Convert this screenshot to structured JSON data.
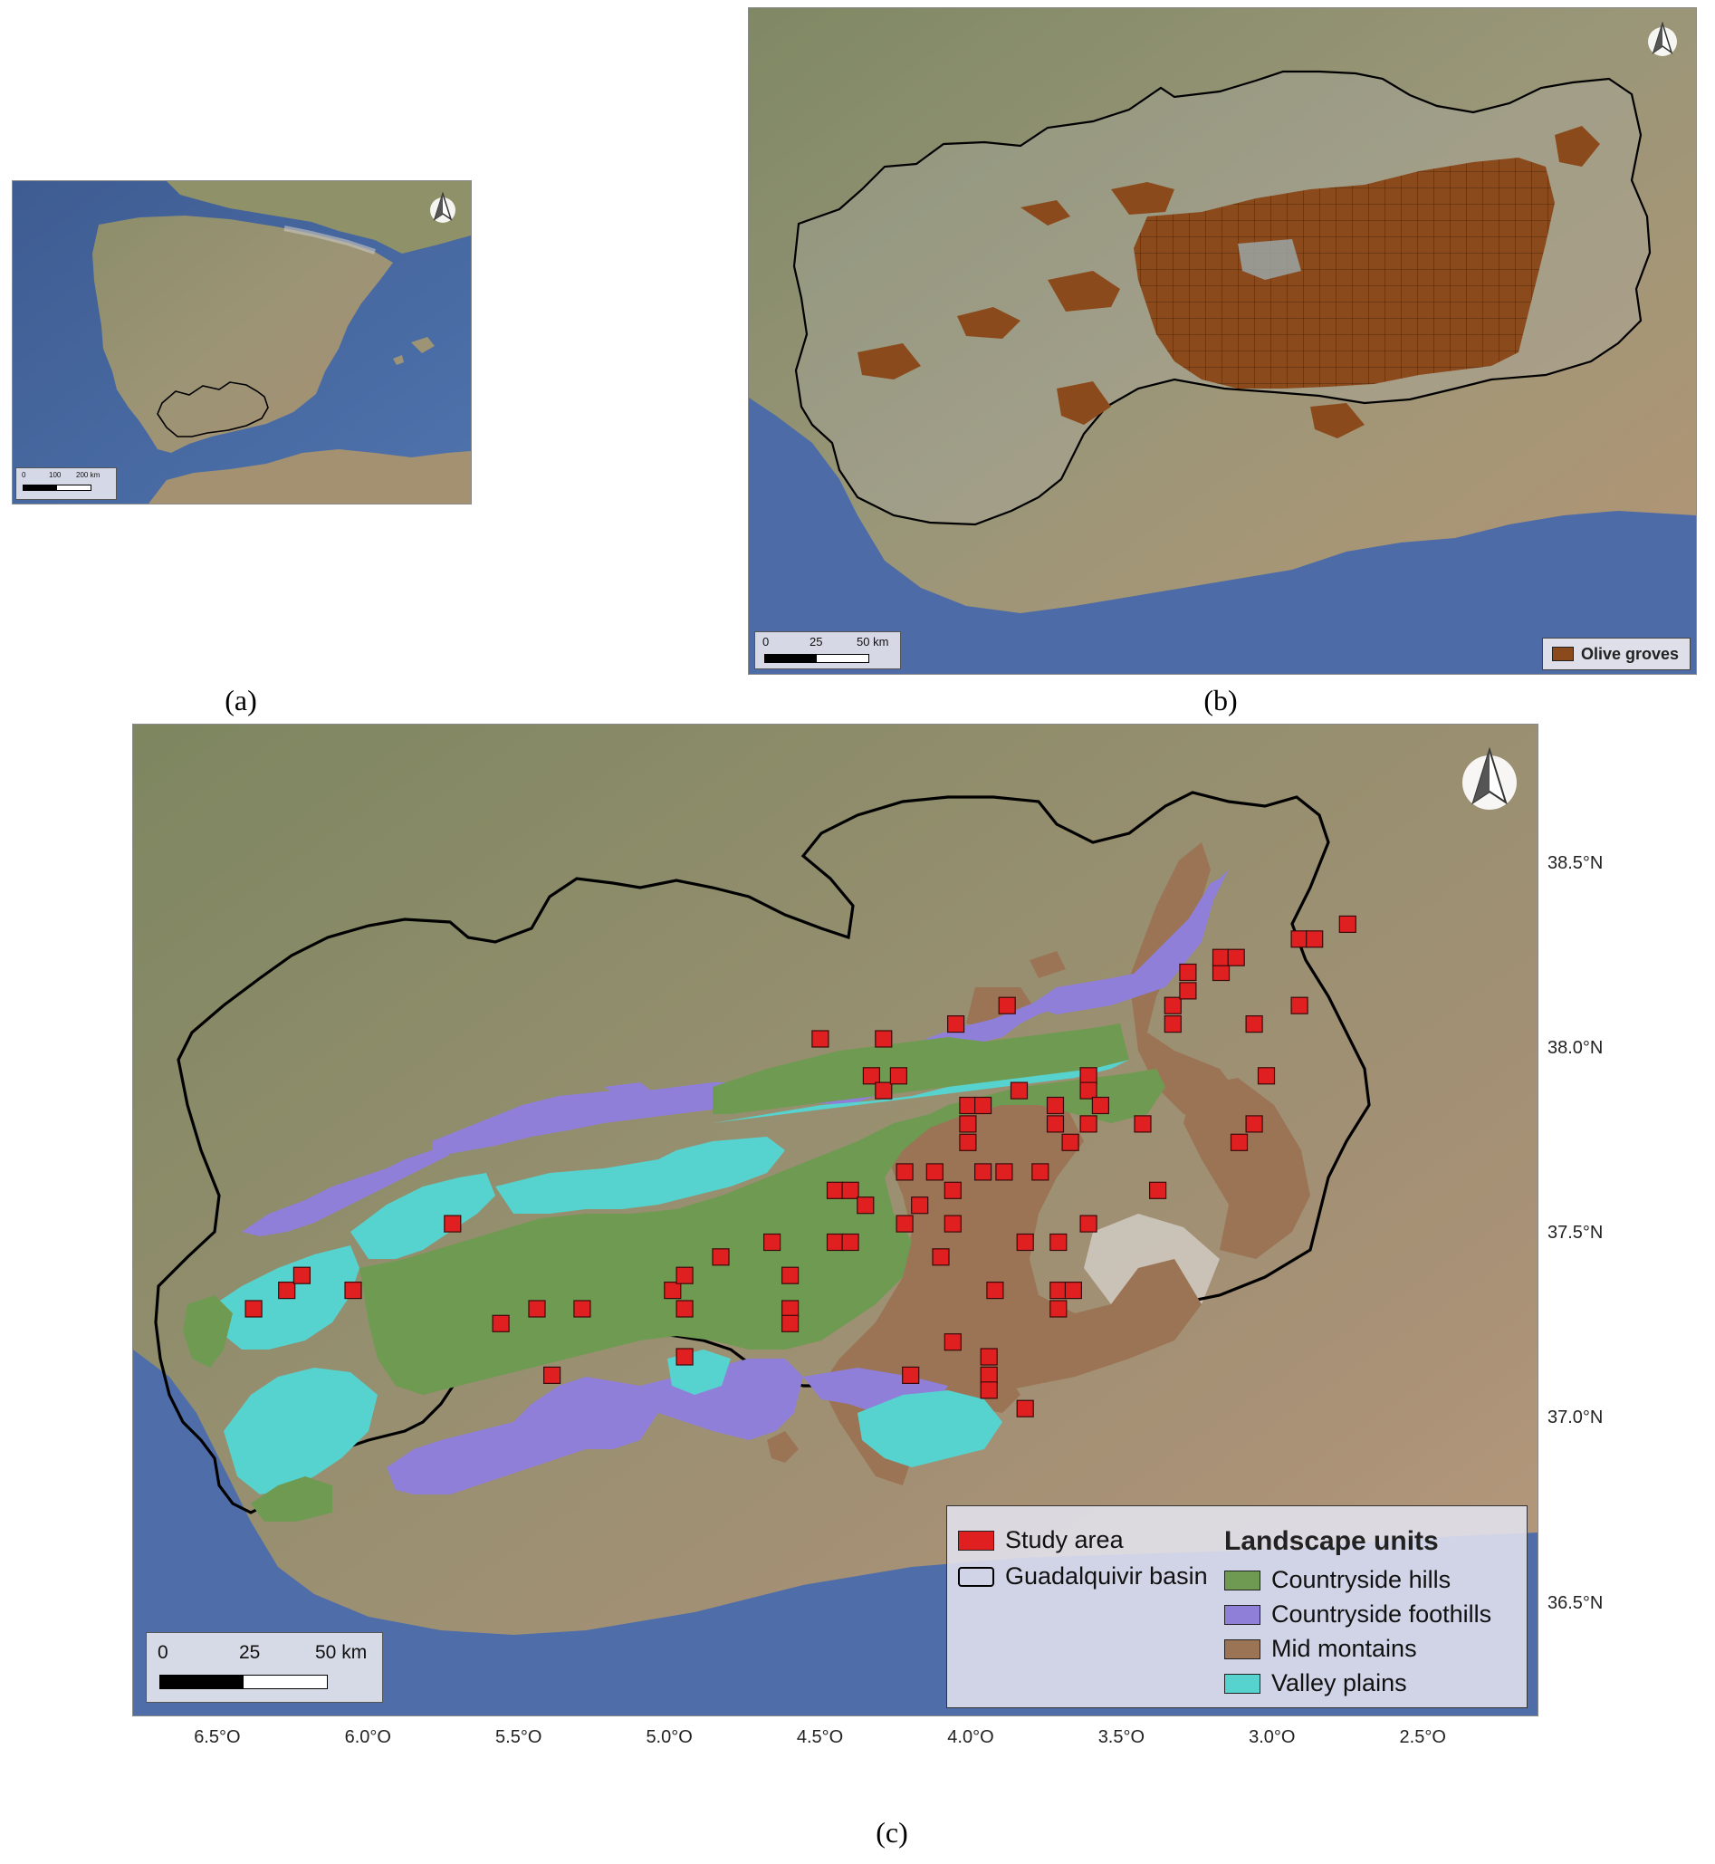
{
  "panels": {
    "a": {
      "caption": "(a)",
      "scale": {
        "ticks": [
          "0",
          "100",
          "200 km"
        ]
      }
    },
    "b": {
      "caption": "(b)",
      "scale": {
        "ticks": [
          "0",
          "25",
          "50 km"
        ]
      },
      "legend_label": "Olive groves"
    },
    "c": {
      "caption": "(c)",
      "scale": {
        "ticks": [
          "0",
          "25",
          "50 km"
        ]
      },
      "legend": {
        "study_area": "Study area",
        "basin": "Guadalquivir basin",
        "title": "Landscape units",
        "units": [
          {
            "label": "Countryside hills",
            "color": "#6f9a52"
          },
          {
            "label": "Countryside foothills",
            "color": "#8f7fd8"
          },
          {
            "label": "Mid montains",
            "color": "#9b7455"
          },
          {
            "label": "Valley plains",
            "color": "#57d3cf"
          }
        ]
      },
      "lon_labels": [
        "6.5°O",
        "6.0°O",
        "5.5°O",
        "5.0°O",
        "4.5°O",
        "4.0°O",
        "3.5°O",
        "3.0°O",
        "2.5°O"
      ],
      "lat_labels": [
        "38.5°N",
        "38.0°N",
        "37.5°N",
        "37.0°N",
        "36.5°N"
      ]
    }
  },
  "colors": {
    "olive_groves": "#8b4a1c",
    "study_area": "#e02020",
    "basin_outline": "#000000",
    "land": "#8a8d6a",
    "sea": "#4f6fa8"
  },
  "study_area_points": [
    [
      -6.38,
      37.3
    ],
    [
      -6.27,
      37.35
    ],
    [
      -6.22,
      37.39
    ],
    [
      -6.05,
      37.35
    ],
    [
      -5.72,
      37.53
    ],
    [
      -5.56,
      37.26
    ],
    [
      -5.44,
      37.3
    ],
    [
      -5.29,
      37.3
    ],
    [
      -5.39,
      37.12
    ],
    [
      -4.99,
      37.35
    ],
    [
      -4.95,
      37.39
    ],
    [
      -4.95,
      37.3
    ],
    [
      -4.95,
      37.17
    ],
    [
      -4.83,
      37.44
    ],
    [
      -4.66,
      37.48
    ],
    [
      -4.6,
      37.39
    ],
    [
      -4.6,
      37.3
    ],
    [
      -4.6,
      37.26
    ],
    [
      -4.5,
      38.03
    ],
    [
      -4.45,
      37.62
    ],
    [
      -4.45,
      37.48
    ],
    [
      -4.4,
      37.62
    ],
    [
      -4.4,
      37.48
    ],
    [
      -4.35,
      37.58
    ],
    [
      -4.33,
      37.93
    ],
    [
      -4.29,
      37.89
    ],
    [
      -4.29,
      38.03
    ],
    [
      -4.24,
      37.93
    ],
    [
      -4.22,
      37.67
    ],
    [
      -4.22,
      37.53
    ],
    [
      -4.2,
      37.12
    ],
    [
      -4.17,
      37.58
    ],
    [
      -4.12,
      37.67
    ],
    [
      -4.1,
      37.44
    ],
    [
      -4.06,
      37.62
    ],
    [
      -4.06,
      37.53
    ],
    [
      -4.06,
      37.21
    ],
    [
      -4.05,
      38.07
    ],
    [
      -4.01,
      37.85
    ],
    [
      -4.01,
      37.8
    ],
    [
      -4.01,
      37.75
    ],
    [
      -3.96,
      37.85
    ],
    [
      -3.96,
      37.67
    ],
    [
      -3.94,
      37.17
    ],
    [
      -3.94,
      37.12
    ],
    [
      -3.94,
      37.08
    ],
    [
      -3.92,
      37.35
    ],
    [
      -3.89,
      37.67
    ],
    [
      -3.88,
      38.12
    ],
    [
      -3.84,
      37.89
    ],
    [
      -3.82,
      37.48
    ],
    [
      -3.82,
      37.03
    ],
    [
      -3.77,
      37.67
    ],
    [
      -3.72,
      37.85
    ],
    [
      -3.72,
      37.8
    ],
    [
      -3.71,
      37.48
    ],
    [
      -3.71,
      37.35
    ],
    [
      -3.71,
      37.3
    ],
    [
      -3.67,
      37.75
    ],
    [
      -3.66,
      37.35
    ],
    [
      -3.61,
      37.93
    ],
    [
      -3.61,
      37.89
    ],
    [
      -3.61,
      37.8
    ],
    [
      -3.61,
      37.53
    ],
    [
      -3.57,
      37.85
    ],
    [
      -3.43,
      37.8
    ],
    [
      -3.38,
      37.62
    ],
    [
      -3.33,
      38.07
    ],
    [
      -3.33,
      38.12
    ],
    [
      -3.28,
      38.21
    ],
    [
      -3.28,
      38.16
    ],
    [
      -3.17,
      38.21
    ],
    [
      -3.17,
      38.25
    ],
    [
      -3.12,
      38.25
    ],
    [
      -3.11,
      37.75
    ],
    [
      -3.06,
      37.8
    ],
    [
      -3.06,
      38.07
    ],
    [
      -3.02,
      37.93
    ],
    [
      -2.91,
      38.3
    ],
    [
      -2.86,
      38.3
    ],
    [
      -2.91,
      38.12
    ],
    [
      -2.75,
      38.34
    ]
  ]
}
